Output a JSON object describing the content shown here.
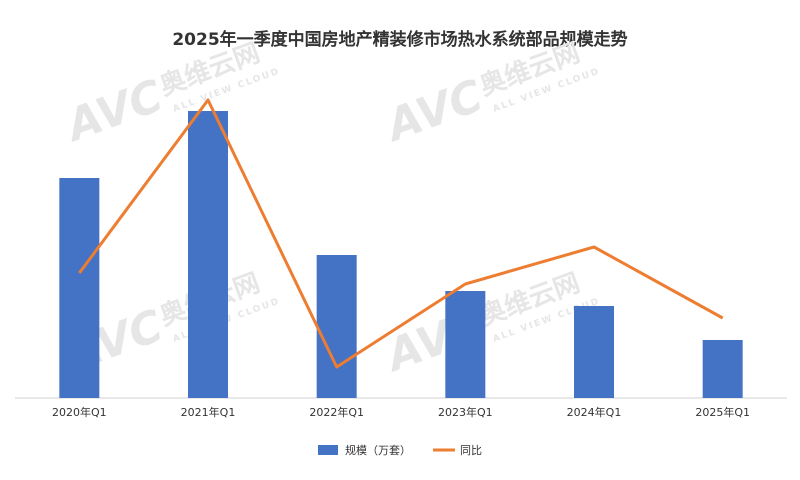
{
  "chart_data": {
    "type": "bar-line",
    "title": "2025年一季度中国房地产精装修市场热水系统部品规模走势",
    "categories": [
      "2020年Q1",
      "2021年Q1",
      "2022年Q1",
      "2023年Q1",
      "2024年Q1",
      "2025年Q1"
    ],
    "series": [
      {
        "name": "规模（万套）",
        "type": "bar",
        "color": "#4472c4",
        "values": [
          220,
          287,
          143,
          107,
          92,
          58
        ]
      },
      {
        "name": "同比",
        "type": "line",
        "axis": "y2",
        "color": "#ed7d31",
        "values": [
          125,
          298,
          31,
          114,
          151,
          80
        ]
      }
    ],
    "ylim": [
      0,
      300
    ],
    "y2lim": [
      0,
      300
    ],
    "watermark": {
      "logo": "AVC",
      "brand": "奥维云网",
      "tagline": "ALL VIEW CLOUD"
    }
  }
}
